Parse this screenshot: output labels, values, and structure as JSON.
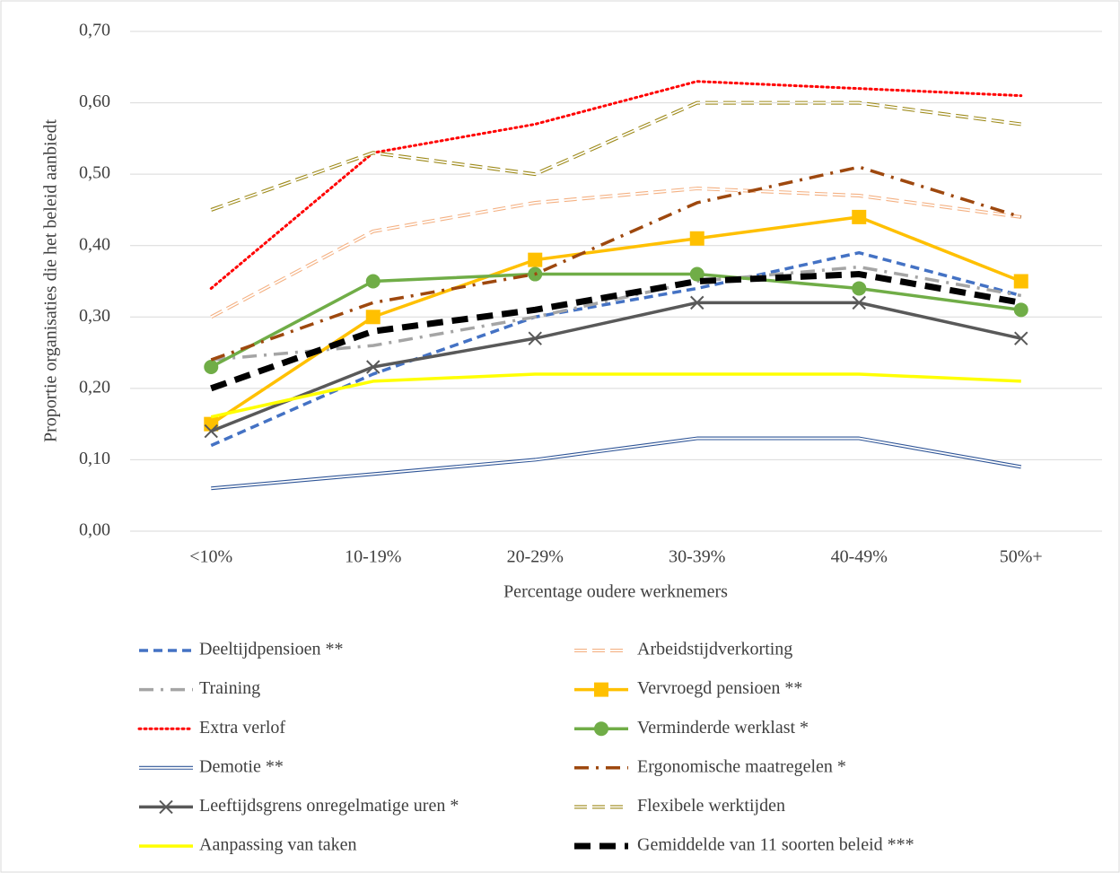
{
  "chart_data": {
    "type": "line",
    "x_label": "Percentage oudere werknemers",
    "y_label": "Proportie organisaties die het beleid aanbiedt",
    "categories": [
      "<10%",
      "10-19%",
      "20-29%",
      "30-39%",
      "40-49%",
      "50%+"
    ],
    "ylim": [
      0,
      0.7
    ],
    "yticks": [
      {
        "value": 0,
        "label": "0,00"
      },
      {
        "value": 0.1,
        "label": "0,10"
      },
      {
        "value": 0.2,
        "label": "0,20"
      },
      {
        "value": 0.3,
        "label": "0,30"
      },
      {
        "value": 0.4,
        "label": "0,40"
      },
      {
        "value": 0.5,
        "label": "0,50"
      },
      {
        "value": 0.6,
        "label": "0,60"
      },
      {
        "value": 0.7,
        "label": "0,70"
      }
    ],
    "grid": true,
    "series": [
      {
        "name": "Deeltijdpensioen **",
        "color": "#4472c4",
        "line_style": "dashed",
        "values": [
          0.12,
          0.22,
          0.3,
          0.34,
          0.39,
          0.33
        ]
      },
      {
        "name": "Arbeidstijdverkorting",
        "color": "#f4b183",
        "line_style": "double-dashed",
        "values": [
          0.3,
          0.42,
          0.46,
          0.48,
          0.47,
          0.44
        ]
      },
      {
        "name": "Training",
        "color": "#a5a5a5",
        "line_style": "dash-dot",
        "values": [
          0.24,
          0.26,
          0.3,
          0.35,
          0.37,
          0.33
        ]
      },
      {
        "name": "Vervroegd pensioen **",
        "color": "#ffc000",
        "line_style": "solid",
        "marker": "square",
        "values": [
          0.15,
          0.3,
          0.38,
          0.41,
          0.44,
          0.35
        ]
      },
      {
        "name": "Extra verlof",
        "color": "#ff0000",
        "line_style": "dotted",
        "values": [
          0.34,
          0.53,
          0.57,
          0.63,
          0.62,
          0.61
        ]
      },
      {
        "name": "Verminderde werklast *",
        "color": "#70ad47",
        "line_style": "solid",
        "marker": "circle",
        "values": [
          0.23,
          0.35,
          0.36,
          0.36,
          0.34,
          0.31
        ]
      },
      {
        "name": "Demotie **",
        "color": "#2f5597",
        "line_style": "double",
        "values": [
          0.06,
          0.08,
          0.1,
          0.13,
          0.13,
          0.09
        ]
      },
      {
        "name": "Ergonomische maatregelen *",
        "color": "#9e480e",
        "line_style": "dash-dot",
        "values": [
          0.24,
          0.32,
          0.36,
          0.46,
          0.51,
          0.44
        ]
      },
      {
        "name": "Leeftijdsgrens onregelmatige uren *",
        "color": "#595959",
        "line_style": "solid",
        "marker": "x",
        "values": [
          0.14,
          0.23,
          0.27,
          0.32,
          0.32,
          0.27
        ]
      },
      {
        "name": "Flexibele werktijden",
        "color": "#9e8a1a",
        "line_style": "double-dashed",
        "values": [
          0.45,
          0.53,
          0.5,
          0.6,
          0.6,
          0.57
        ]
      },
      {
        "name": "Aanpassing van taken",
        "color": "#ffff00",
        "line_style": "solid",
        "values": [
          0.16,
          0.21,
          0.22,
          0.22,
          0.22,
          0.21
        ]
      },
      {
        "name": "Gemiddelde van 11 soorten beleid ***",
        "color": "#000000",
        "line_style": "thick-dashed",
        "values": [
          0.2,
          0.28,
          0.31,
          0.35,
          0.36,
          0.32
        ]
      }
    ]
  }
}
